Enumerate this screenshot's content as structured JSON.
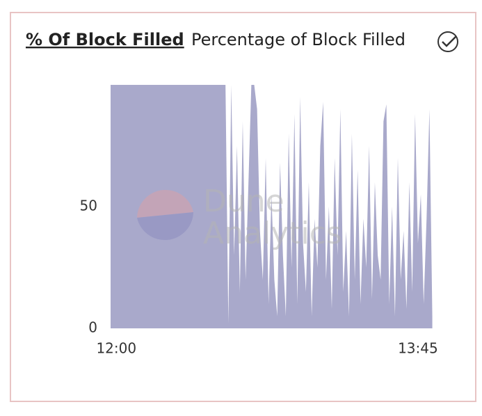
{
  "chart_data": {
    "type": "area",
    "title": "% Of Block Filled",
    "subtitle": "Percentage of Block Filled",
    "watermark": [
      "Dune",
      "Analytics"
    ],
    "color": "#a9a9cb",
    "x": [
      "11:58",
      "11:59",
      "12:00",
      "12:01",
      "12:02",
      "12:03",
      "12:04",
      "12:05",
      "12:06",
      "12:07",
      "12:08",
      "12:09",
      "12:10",
      "12:11",
      "12:12",
      "12:13",
      "12:14",
      "12:15",
      "12:16",
      "12:17",
      "12:18",
      "12:19",
      "12:20",
      "12:21",
      "12:22",
      "12:23",
      "12:24",
      "12:25",
      "12:26",
      "12:27",
      "12:28",
      "12:29",
      "12:30",
      "12:31",
      "12:32",
      "12:33",
      "12:34",
      "12:35",
      "12:36",
      "12:37",
      "12:38",
      "12:39",
      "12:40",
      "12:41",
      "12:42",
      "12:43",
      "12:44",
      "12:45",
      "12:46",
      "12:47",
      "12:48",
      "12:49",
      "12:50",
      "12:51",
      "12:52",
      "12:53",
      "12:54",
      "12:55",
      "12:56",
      "12:57",
      "12:58",
      "12:59",
      "13:00",
      "13:01",
      "13:02",
      "13:03",
      "13:04",
      "13:05",
      "13:06",
      "13:07",
      "13:08",
      "13:09",
      "13:10",
      "13:11",
      "13:12",
      "13:13",
      "13:14",
      "13:15",
      "13:16",
      "13:17",
      "13:18",
      "13:19",
      "13:20",
      "13:21",
      "13:22",
      "13:23",
      "13:24",
      "13:25",
      "13:26",
      "13:27",
      "13:28",
      "13:29",
      "13:30",
      "13:31",
      "13:32",
      "13:33",
      "13:34",
      "13:35",
      "13:36",
      "13:37",
      "13:38",
      "13:39",
      "13:40",
      "13:41",
      "13:42",
      "13:43",
      "13:44",
      "13:45",
      "13:46",
      "13:47",
      "13:48",
      "13:49",
      "13:50"
    ],
    "values": [
      100,
      100,
      100,
      100,
      100,
      100,
      100,
      100,
      100,
      100,
      100,
      100,
      100,
      100,
      100,
      100,
      100,
      100,
      100,
      100,
      100,
      100,
      100,
      100,
      100,
      100,
      100,
      100,
      100,
      100,
      100,
      100,
      100,
      100,
      100,
      100,
      100,
      100,
      100,
      100,
      100,
      2,
      100,
      30,
      75,
      15,
      85,
      20,
      60,
      100,
      100,
      90,
      40,
      20,
      70,
      10,
      55,
      20,
      5,
      68,
      30,
      5,
      80,
      25,
      88,
      10,
      95,
      35,
      15,
      60,
      5,
      45,
      25,
      75,
      93,
      20,
      50,
      8,
      70,
      30,
      90,
      15,
      40,
      5,
      80,
      20,
      65,
      10,
      45,
      25,
      75,
      12,
      60,
      30,
      20,
      85,
      92,
      10,
      50,
      5,
      70,
      20,
      40,
      8,
      60,
      15,
      88,
      35,
      55,
      10,
      45,
      90,
      5
    ],
    "xticks": [
      "12:00",
      "13:45"
    ],
    "ylim": [
      0,
      100
    ],
    "yticks": [
      0,
      50
    ]
  }
}
